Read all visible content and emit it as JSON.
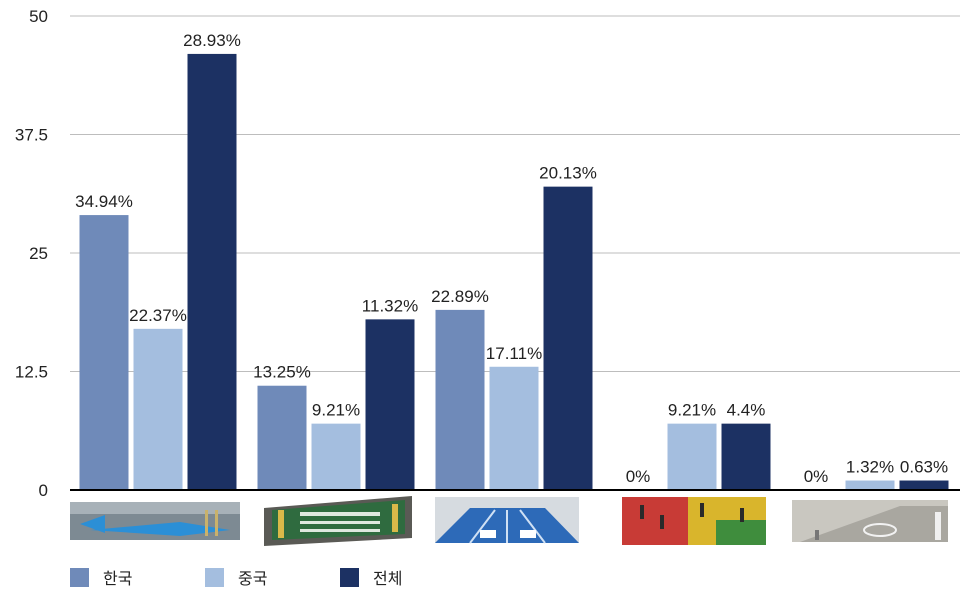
{
  "chart_data": {
    "type": "bar",
    "categories": [
      "",
      "",
      "",
      "",
      ""
    ],
    "ylim": [
      0,
      50
    ],
    "yticks": [
      "0",
      "12.5",
      "25",
      "37.5",
      "50"
    ],
    "grid": true,
    "legend_position": "bottom-left",
    "series": [
      {
        "name": "한국",
        "color": "#6f8ab9",
        "values": [
          29,
          11,
          19,
          0,
          0
        ],
        "labels": [
          "34.94%",
          "13.25%",
          "22.89%",
          "0%",
          "0%"
        ]
      },
      {
        "name": "중국",
        "color": "#a4bedf",
        "values": [
          17,
          7,
          13,
          7,
          1
        ],
        "labels": [
          "22.37%",
          "9.21%",
          "17.11%",
          "9.21%",
          "1.32%"
        ]
      },
      {
        "name": "전체",
        "color": "#1c3163",
        "values": [
          46,
          18,
          32,
          7,
          1
        ],
        "labels": [
          "28.93%",
          "11.32%",
          "20.13%",
          "4.4%",
          "0.63%"
        ]
      }
    ],
    "category_images": [
      "floor-arrow-photo",
      "gate-sign-photo",
      "blue-lane-photo",
      "colored-floor-photo",
      "road-marking-photo"
    ]
  }
}
